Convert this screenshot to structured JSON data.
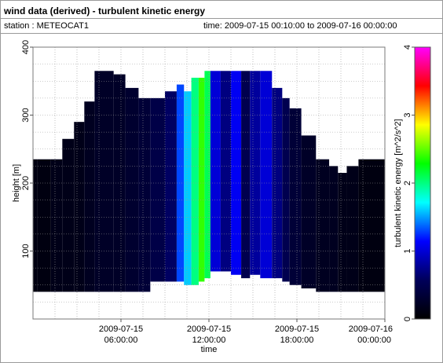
{
  "header": {
    "title": "wind data (derived) - turbulent kinetic energy",
    "station": "station : METEOCAT1",
    "time_range": "time: 2009-07-15 00:10:00 to 2009-07-16 00:00:00"
  },
  "chart_data": {
    "type": "heatmap",
    "title": "wind data (derived) - turbulent kinetic energy",
    "xlabel": "time",
    "ylabel": "height [m]",
    "colorbar_label": "turbulent kinetic energy [m^2/s^2]",
    "x_unit": "hours since 2009-07-15 00:00:00",
    "xlim": [
      0,
      24
    ],
    "ylim": [
      0,
      400
    ],
    "clim": [
      0,
      4
    ],
    "x_ticks": [
      {
        "value": 6,
        "line1": "2009-07-15",
        "line2": "06:00:00"
      },
      {
        "value": 12,
        "line1": "2009-07-15",
        "line2": "12:00:00"
      },
      {
        "value": 18,
        "line1": "2009-07-15",
        "line2": "18:00:00"
      },
      {
        "value": 24,
        "line1": "2009-07-16",
        "line2": "00:00:00"
      }
    ],
    "y_ticks": [
      100,
      200,
      300,
      400
    ],
    "colorbar_ticks": [
      0,
      1,
      2,
      3,
      4
    ],
    "colormap": [
      "#000000",
      "#00005a",
      "#0000ff",
      "#00ffff",
      "#00ff00",
      "#ffff00",
      "#ff0000",
      "#ff00ff"
    ],
    "columns": [
      {
        "x0": 0.0,
        "x1": 0.3,
        "bottom": 40,
        "top": 235,
        "value": 0.1
      },
      {
        "x0": 0.3,
        "x1": 1.2,
        "bottom": 40,
        "top": 235,
        "value": 0.1
      },
      {
        "x0": 1.2,
        "x1": 2.0,
        "bottom": 40,
        "top": 235,
        "value": 0.15
      },
      {
        "x0": 2.0,
        "x1": 2.8,
        "bottom": 40,
        "top": 265,
        "value": 0.15
      },
      {
        "x0": 2.8,
        "x1": 3.5,
        "bottom": 40,
        "top": 290,
        "value": 0.15
      },
      {
        "x0": 3.5,
        "x1": 4.2,
        "bottom": 40,
        "top": 320,
        "value": 0.2
      },
      {
        "x0": 4.2,
        "x1": 5.5,
        "bottom": 40,
        "top": 365,
        "value": 0.25
      },
      {
        "x0": 5.5,
        "x1": 6.3,
        "bottom": 40,
        "top": 360,
        "value": 0.25
      },
      {
        "x0": 6.3,
        "x1": 7.2,
        "bottom": 40,
        "top": 340,
        "value": 0.3
      },
      {
        "x0": 7.2,
        "x1": 8.0,
        "bottom": 40,
        "top": 325,
        "value": 0.35
      },
      {
        "x0": 8.0,
        "x1": 9.0,
        "bottom": 55,
        "top": 325,
        "value": 0.45
      },
      {
        "x0": 9.0,
        "x1": 9.8,
        "bottom": 55,
        "top": 335,
        "value": 0.6
      },
      {
        "x0": 9.8,
        "x1": 10.3,
        "bottom": 55,
        "top": 345,
        "value": 1.3
      },
      {
        "x0": 10.3,
        "x1": 10.8,
        "bottom": 50,
        "top": 335,
        "value": 1.6
      },
      {
        "x0": 10.8,
        "x1": 11.3,
        "bottom": 50,
        "top": 355,
        "value": 2.0
      },
      {
        "x0": 11.3,
        "x1": 11.7,
        "bottom": 55,
        "top": 355,
        "value": 2.4
      },
      {
        "x0": 11.7,
        "x1": 12.1,
        "bottom": 60,
        "top": 365,
        "value": 2.1
      },
      {
        "x0": 12.1,
        "x1": 12.8,
        "bottom": 70,
        "top": 365,
        "value": 1.0
      },
      {
        "x0": 12.8,
        "x1": 13.5,
        "bottom": 70,
        "top": 365,
        "value": 0.7
      },
      {
        "x0": 13.5,
        "x1": 14.2,
        "bottom": 65,
        "top": 365,
        "value": 1.1
      },
      {
        "x0": 14.2,
        "x1": 14.8,
        "bottom": 60,
        "top": 365,
        "value": 0.5
      },
      {
        "x0": 14.8,
        "x1": 15.5,
        "bottom": 65,
        "top": 365,
        "value": 0.8
      },
      {
        "x0": 15.5,
        "x1": 16.3,
        "bottom": 60,
        "top": 365,
        "value": 1.0
      },
      {
        "x0": 16.3,
        "x1": 17.0,
        "bottom": 60,
        "top": 340,
        "value": 0.7
      },
      {
        "x0": 17.0,
        "x1": 17.5,
        "bottom": 55,
        "top": 325,
        "value": 0.5
      },
      {
        "x0": 17.5,
        "x1": 18.3,
        "bottom": 50,
        "top": 310,
        "value": 0.35
      },
      {
        "x0": 18.3,
        "x1": 19.3,
        "bottom": 45,
        "top": 270,
        "value": 0.25
      },
      {
        "x0": 19.3,
        "x1": 20.2,
        "bottom": 40,
        "top": 235,
        "value": 0.2
      },
      {
        "x0": 20.2,
        "x1": 20.8,
        "bottom": 40,
        "top": 225,
        "value": 0.2
      },
      {
        "x0": 20.8,
        "x1": 21.4,
        "bottom": 40,
        "top": 215,
        "value": 0.15
      },
      {
        "x0": 21.4,
        "x1": 22.2,
        "bottom": 40,
        "top": 225,
        "value": 0.15
      },
      {
        "x0": 22.2,
        "x1": 24.0,
        "bottom": 40,
        "top": 235,
        "value": 0.1
      }
    ],
    "grid": true
  }
}
